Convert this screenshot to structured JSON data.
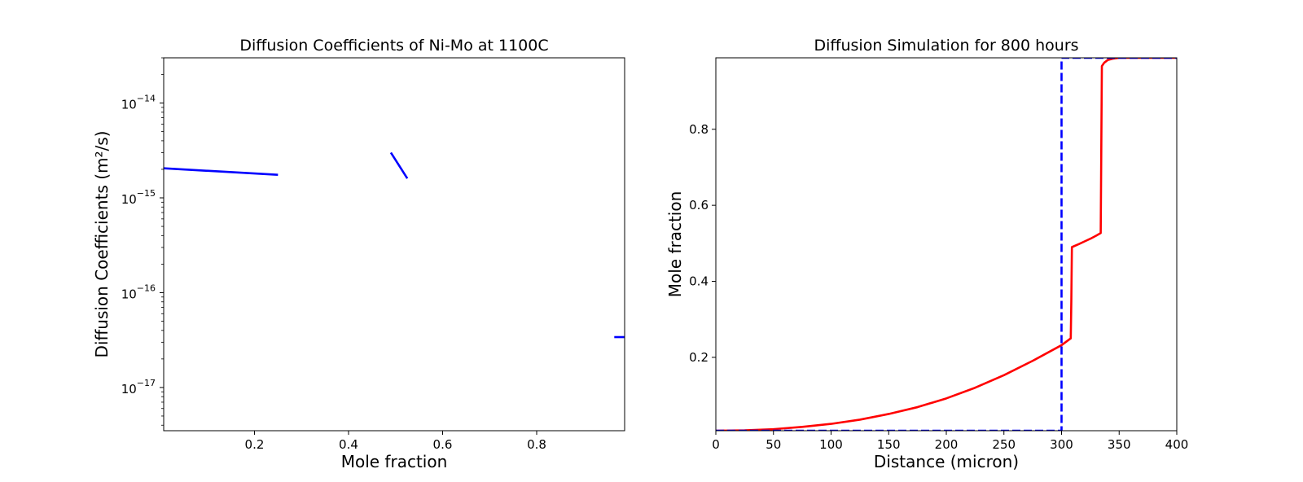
{
  "chart_data": [
    {
      "type": "line",
      "title": "Diffusion Coefficients of Ni-Mo at 1100C",
      "xlabel": "Mole fraction",
      "ylabel": "Diffusion Coefficients (m²/s)",
      "yscale": "log",
      "xlim": [
        0.007,
        0.987
      ],
      "ylim": [
        3.5e-18,
        3e-14
      ],
      "grid": false,
      "legend": "none",
      "xticks": [
        {
          "value": 0.2,
          "label": "0.2"
        },
        {
          "value": 0.4,
          "label": "0.4"
        },
        {
          "value": 0.6,
          "label": "0.6"
        },
        {
          "value": 0.8,
          "label": "0.8"
        }
      ],
      "yticks": [
        {
          "value": 1e-14,
          "base": "10",
          "exp": "−14"
        },
        {
          "value": 1e-15,
          "base": "10",
          "exp": "−15"
        },
        {
          "value": 1e-16,
          "base": "10",
          "exp": "−16"
        },
        {
          "value": 1e-17,
          "base": "10",
          "exp": "−17"
        }
      ],
      "series": [
        {
          "color": "#0000ff",
          "dash": "solid",
          "x": [
            0.007,
            0.25
          ],
          "y": [
            2.05e-15,
            1.75e-15
          ]
        },
        {
          "color": "#0000ff",
          "dash": "solid",
          "x": [
            0.49,
            0.525
          ],
          "y": [
            3e-15,
            1.6e-15
          ]
        },
        {
          "color": "#0000ff",
          "dash": "solid",
          "x": [
            0.965,
            0.987
          ],
          "y": [
            3.4e-17,
            3.4e-17
          ]
        }
      ]
    },
    {
      "type": "line",
      "title": "Diffusion Simulation for 800 hours",
      "xlabel": "Distance (micron)",
      "ylabel": "Mole fraction",
      "yscale": "linear",
      "xlim": [
        0,
        400
      ],
      "ylim": [
        0.007,
        0.988
      ],
      "grid": false,
      "legend": "none",
      "xticks": [
        {
          "value": 0,
          "label": "0"
        },
        {
          "value": 50,
          "label": "50"
        },
        {
          "value": 100,
          "label": "100"
        },
        {
          "value": 150,
          "label": "150"
        },
        {
          "value": 200,
          "label": "200"
        },
        {
          "value": 250,
          "label": "250"
        },
        {
          "value": 300,
          "label": "300"
        },
        {
          "value": 350,
          "label": "350"
        },
        {
          "value": 400,
          "label": "400"
        }
      ],
      "yticks": [
        {
          "value": 0.2,
          "label": "0.2"
        },
        {
          "value": 0.4,
          "label": "0.4"
        },
        {
          "value": 0.6,
          "label": "0.6"
        },
        {
          "value": 0.8,
          "label": "0.8"
        }
      ],
      "series": [
        {
          "color": "#ff0000",
          "dash": "solid",
          "x": [
            0,
            25,
            50,
            75,
            100,
            125,
            150,
            175,
            200,
            225,
            250,
            275,
            300,
            308,
            308.5,
            309,
            315,
            320,
            325,
            330,
            334,
            334.5,
            335,
            337,
            340,
            345,
            350,
            360,
            400
          ],
          "y": [
            0.007,
            0.008,
            0.011,
            0.017,
            0.025,
            0.036,
            0.051,
            0.069,
            0.092,
            0.12,
            0.153,
            0.191,
            0.232,
            0.25,
            0.35,
            0.49,
            0.498,
            0.505,
            0.512,
            0.52,
            0.527,
            0.75,
            0.966,
            0.975,
            0.982,
            0.986,
            0.988,
            0.988,
            0.988
          ]
        },
        {
          "color": "#0000ff",
          "dash": "dashed",
          "x": [
            0,
            300,
            300,
            400
          ],
          "y": [
            0.007,
            0.007,
            0.988,
            0.988
          ]
        }
      ]
    }
  ]
}
